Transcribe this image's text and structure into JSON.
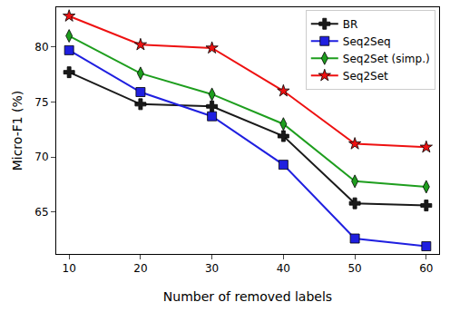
{
  "chart_data": {
    "type": "line",
    "x_label": "Number of removed labels",
    "y_label": "Micro-F1 (%)",
    "x": [
      10,
      20,
      30,
      40,
      50,
      60
    ],
    "xlim": [
      8.2,
      61.8
    ],
    "xticks": [
      10,
      20,
      30,
      40,
      50,
      60
    ],
    "ylim": [
      61.2,
      83.6
    ],
    "yticks": [
      65,
      70,
      75,
      80
    ],
    "grid": false,
    "legend": "upper right",
    "series": [
      {
        "name": "BR",
        "color": "#1a1a1a",
        "marker": "cross",
        "values": [
          77.7,
          74.8,
          74.6,
          71.9,
          65.8,
          65.6
        ]
      },
      {
        "name": "Seq2Seq",
        "color": "#1f1fe0",
        "marker": "square",
        "values": [
          79.7,
          75.9,
          73.7,
          69.3,
          62.6,
          61.9
        ]
      },
      {
        "name": "Seq2Set (simp.)",
        "color": "#1e9e1e",
        "marker": "diamond",
        "values": [
          81.0,
          77.6,
          75.7,
          73.0,
          67.8,
          67.3
        ]
      },
      {
        "name": "Seq2Set",
        "color": "#ee1111",
        "marker": "star",
        "values": [
          82.8,
          80.2,
          79.9,
          76.0,
          71.2,
          70.9
        ]
      }
    ]
  }
}
